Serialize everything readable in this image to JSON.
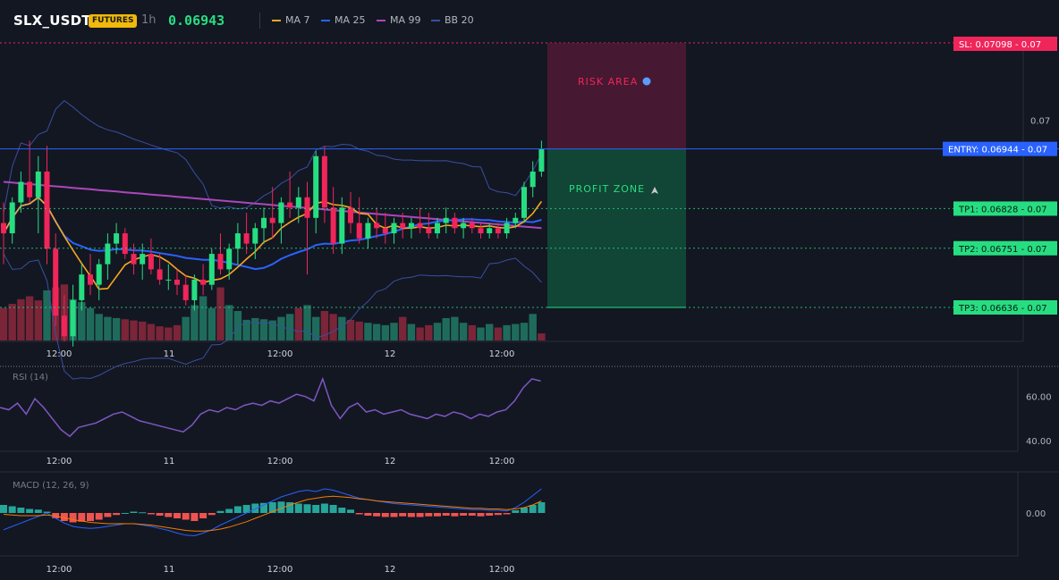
{
  "header": {
    "symbol": "SLX_USDT",
    "badge": "FUTURES",
    "interval": "1h",
    "price": "0.06943",
    "legend": [
      {
        "label": "MA 7",
        "color": "#f5a623"
      },
      {
        "label": "MA 25",
        "color": "#2962ff"
      },
      {
        "label": "MA 99",
        "color": "#ab47bc"
      },
      {
        "label": "BB 20",
        "color": "#3a4fa0"
      }
    ]
  },
  "colors": {
    "up": "#26de81",
    "down": "#f0255a",
    "volUp": "#1f6b5b",
    "volDown": "#7a2538",
    "ma7": "#f5a623",
    "ma25": "#2962ff",
    "ma99": "#ab47bc",
    "bb": "#3a4fa0",
    "rsi": "#7e57c2",
    "macd": "#2962ff",
    "signal": "#f57c00",
    "histUp": "#26a69a",
    "histDown": "#ef5350"
  },
  "chart_data": [
    {
      "type": "candlestick",
      "name": "price",
      "ylim": [
        0.0657,
        0.0715
      ],
      "y_ticks": [
        {
          "value": 0.07,
          "label": "0.07"
        }
      ],
      "x_ticks": [
        "12:00",
        "11",
        "12:00",
        "12",
        "12:00"
      ],
      "levels": [
        {
          "label": "SL: 0.07098 - 0.07",
          "value": 0.07098,
          "color": "#f0255a"
        },
        {
          "label": "ENTRY: 0.06944 - 0.07",
          "value": 0.06944,
          "color": "#2962ff"
        },
        {
          "label": "TP1: 0.06828 - 0.07",
          "value": 0.06828,
          "color": "#26de81"
        },
        {
          "label": "TP2: 0.06751 - 0.07",
          "value": 0.06751,
          "color": "#26de81"
        },
        {
          "label": "TP3: 0.06636 - 0.07",
          "value": 0.06636,
          "color": "#26de81"
        }
      ],
      "zones": {
        "risk_label": "RISK AREA",
        "profit_label": "PROFIT ZONE"
      },
      "candles": [
        [
          0.068,
          0.0684,
          0.0672,
          0.0678
        ],
        [
          0.0678,
          0.0685,
          0.0676,
          0.0684
        ],
        [
          0.0684,
          0.069,
          0.0682,
          0.0688
        ],
        [
          0.0688,
          0.0696,
          0.0684,
          0.0685
        ],
        [
          0.0685,
          0.0693,
          0.0678,
          0.069
        ],
        [
          0.069,
          0.0695,
          0.0672,
          0.0675
        ],
        [
          0.0675,
          0.0678,
          0.066,
          0.0662
        ],
        [
          0.0662,
          0.0666,
          0.0657,
          0.0658
        ],
        [
          0.0658,
          0.0668,
          0.0656,
          0.0665
        ],
        [
          0.0665,
          0.0672,
          0.0663,
          0.067
        ],
        [
          0.067,
          0.0674,
          0.0666,
          0.0668
        ],
        [
          0.0668,
          0.0673,
          0.0665,
          0.0672
        ],
        [
          0.0672,
          0.0678,
          0.0669,
          0.0676
        ],
        [
          0.0676,
          0.068,
          0.0674,
          0.0678
        ],
        [
          0.0678,
          0.0679,
          0.0673,
          0.0674
        ],
        [
          0.0674,
          0.0676,
          0.067,
          0.0672
        ],
        [
          0.0672,
          0.0676,
          0.0669,
          0.0674
        ],
        [
          0.0674,
          0.0677,
          0.067,
          0.0671
        ],
        [
          0.0671,
          0.0674,
          0.0668,
          0.0669
        ],
        [
          0.0669,
          0.0672,
          0.0667,
          0.0669
        ],
        [
          0.0669,
          0.0671,
          0.0666,
          0.0668
        ],
        [
          0.0668,
          0.067,
          0.0664,
          0.0665
        ],
        [
          0.0665,
          0.067,
          0.0663,
          0.0669
        ],
        [
          0.0669,
          0.0672,
          0.0666,
          0.0668
        ],
        [
          0.0668,
          0.0675,
          0.0667,
          0.0674
        ],
        [
          0.0674,
          0.0678,
          0.067,
          0.0671
        ],
        [
          0.0671,
          0.0676,
          0.0669,
          0.0675
        ],
        [
          0.0675,
          0.068,
          0.0672,
          0.0678
        ],
        [
          0.0678,
          0.0682,
          0.0674,
          0.0676
        ],
        [
          0.0676,
          0.068,
          0.0673,
          0.0679
        ],
        [
          0.0679,
          0.0683,
          0.0676,
          0.0681
        ],
        [
          0.0681,
          0.0687,
          0.0677,
          0.068
        ],
        [
          0.068,
          0.0685,
          0.0676,
          0.0684
        ],
        [
          0.0684,
          0.069,
          0.0681,
          0.0683
        ],
        [
          0.0683,
          0.0687,
          0.068,
          0.0685
        ],
        [
          0.0685,
          0.0688,
          0.067,
          0.0681
        ],
        [
          0.0681,
          0.0694,
          0.0678,
          0.0693
        ],
        [
          0.0693,
          0.0695,
          0.068,
          0.0683
        ],
        [
          0.0683,
          0.0687,
          0.0674,
          0.0676
        ],
        [
          0.0676,
          0.0685,
          0.0674,
          0.0683
        ],
        [
          0.0683,
          0.0686,
          0.0678,
          0.068
        ],
        [
          0.068,
          0.0685,
          0.0676,
          0.0677
        ],
        [
          0.0677,
          0.0681,
          0.0675,
          0.068
        ],
        [
          0.068,
          0.0683,
          0.0677,
          0.0679
        ],
        [
          0.0679,
          0.0682,
          0.0676,
          0.0678
        ],
        [
          0.0678,
          0.0681,
          0.0676,
          0.068
        ],
        [
          0.068,
          0.0682,
          0.0677,
          0.0679
        ],
        [
          0.0679,
          0.0681,
          0.0677,
          0.068
        ],
        [
          0.068,
          0.0683,
          0.0678,
          0.0679
        ],
        [
          0.0679,
          0.0682,
          0.0677,
          0.0678
        ],
        [
          0.0678,
          0.0681,
          0.0677,
          0.068
        ],
        [
          0.068,
          0.0683,
          0.0678,
          0.0681
        ],
        [
          0.0681,
          0.0682,
          0.0678,
          0.0679
        ],
        [
          0.0679,
          0.0681,
          0.0677,
          0.068
        ],
        [
          0.068,
          0.0681,
          0.0678,
          0.0679
        ],
        [
          0.0679,
          0.068,
          0.0677,
          0.0678
        ],
        [
          0.0678,
          0.068,
          0.0677,
          0.0679
        ],
        [
          0.0679,
          0.068,
          0.0677,
          0.0678
        ],
        [
          0.0678,
          0.0681,
          0.0677,
          0.068
        ],
        [
          0.068,
          0.0682,
          0.0679,
          0.0681
        ],
        [
          0.0681,
          0.0688,
          0.068,
          0.0687
        ],
        [
          0.0687,
          0.0692,
          0.0685,
          0.069
        ],
        [
          0.069,
          0.0696,
          0.0689,
          0.06944
        ]
      ],
      "volume": [
        [
          0.55,
          "down"
        ],
        [
          0.62,
          "down"
        ],
        [
          0.7,
          "down"
        ],
        [
          0.75,
          "down"
        ],
        [
          0.68,
          "down"
        ],
        [
          0.85,
          "up"
        ],
        [
          0.9,
          "down"
        ],
        [
          0.95,
          "down"
        ],
        [
          0.7,
          "up"
        ],
        [
          0.65,
          "up"
        ],
        [
          0.55,
          "up"
        ],
        [
          0.45,
          "up"
        ],
        [
          0.4,
          "up"
        ],
        [
          0.38,
          "up"
        ],
        [
          0.36,
          "down"
        ],
        [
          0.34,
          "down"
        ],
        [
          0.32,
          "down"
        ],
        [
          0.28,
          "down"
        ],
        [
          0.24,
          "down"
        ],
        [
          0.22,
          "down"
        ],
        [
          0.26,
          "down"
        ],
        [
          0.4,
          "up"
        ],
        [
          0.6,
          "up"
        ],
        [
          0.75,
          "up"
        ],
        [
          0.55,
          "up"
        ],
        [
          0.9,
          "down"
        ],
        [
          0.6,
          "up"
        ],
        [
          0.5,
          "up"
        ],
        [
          0.35,
          "up"
        ],
        [
          0.38,
          "up"
        ],
        [
          0.36,
          "up"
        ],
        [
          0.34,
          "up"
        ],
        [
          0.4,
          "up"
        ],
        [
          0.45,
          "up"
        ],
        [
          0.55,
          "down"
        ],
        [
          0.6,
          "up"
        ],
        [
          0.4,
          "up"
        ],
        [
          0.5,
          "down"
        ],
        [
          0.45,
          "down"
        ],
        [
          0.4,
          "up"
        ],
        [
          0.35,
          "down"
        ],
        [
          0.32,
          "down"
        ],
        [
          0.3,
          "up"
        ],
        [
          0.28,
          "up"
        ],
        [
          0.26,
          "up"
        ],
        [
          0.3,
          "up"
        ],
        [
          0.4,
          "down"
        ],
        [
          0.28,
          "up"
        ],
        [
          0.22,
          "down"
        ],
        [
          0.26,
          "down"
        ],
        [
          0.3,
          "up"
        ],
        [
          0.38,
          "up"
        ],
        [
          0.4,
          "up"
        ],
        [
          0.3,
          "up"
        ],
        [
          0.26,
          "down"
        ],
        [
          0.22,
          "up"
        ],
        [
          0.28,
          "up"
        ],
        [
          0.22,
          "down"
        ],
        [
          0.26,
          "up"
        ],
        [
          0.28,
          "up"
        ],
        [
          0.3,
          "up"
        ],
        [
          0.45,
          "up"
        ],
        [
          0.12,
          "down"
        ]
      ]
    },
    {
      "type": "line",
      "name": "RSI (14)",
      "ylim": [
        36,
        72
      ],
      "y_ticks": [
        {
          "value": 60,
          "label": "60.00"
        },
        {
          "value": 40,
          "label": "40.00"
        }
      ],
      "x_ticks": [
        "12:00",
        "11",
        "12:00",
        "12",
        "12:00"
      ],
      "values": [
        55,
        54,
        57,
        52,
        59,
        55,
        50,
        45,
        42,
        46,
        47,
        48,
        50,
        52,
        53,
        51,
        49,
        48,
        47,
        46,
        45,
        44,
        47,
        52,
        54,
        53,
        55,
        54,
        56,
        57,
        56,
        58,
        57,
        59,
        61,
        60,
        58,
        68,
        56,
        50,
        55,
        57,
        53,
        54,
        52,
        53,
        54,
        52,
        51,
        50,
        52,
        51,
        53,
        52,
        50,
        52,
        51,
        53,
        54,
        58,
        64,
        68,
        67
      ]
    },
    {
      "type": "histogram+line",
      "name": "MACD (12, 26, 9)",
      "ylim": [
        -0.0006,
        0.0006
      ],
      "y_ticks": [
        {
          "value": 0,
          "label": "0.00"
        }
      ],
      "x_ticks": [
        "12:00",
        "11",
        "12:00",
        "12",
        "12:00"
      ],
      "histogram": [
        0.00012,
        0.0001,
        8e-05,
        6e-05,
        5e-05,
        2e-05,
        -8e-05,
        -0.00012,
        -0.00014,
        -0.00013,
        -0.00012,
        -0.0001,
        -6e-05,
        -3e-05,
        0,
        2e-05,
        1e-05,
        -2e-05,
        -4e-05,
        -6e-05,
        -8e-05,
        -0.0001,
        -0.00012,
        -8e-05,
        -3e-05,
        3e-05,
        6e-05,
        0.0001,
        0.00012,
        0.00014,
        0.00015,
        0.00016,
        0.00017,
        0.00016,
        0.00014,
        0.00013,
        0.00012,
        0.00014,
        0.00012,
        8e-05,
        5e-05,
        -2e-05,
        -4e-05,
        -5e-05,
        -6e-05,
        -6e-05,
        -5e-05,
        -6e-05,
        -6e-05,
        -5e-05,
        -5e-05,
        -4e-05,
        -5e-05,
        -4e-05,
        -4e-05,
        -5e-05,
        -4e-05,
        -3e-05,
        -2e-05,
        4e-05,
        8e-05,
        0.00012,
        0.00016
      ],
      "macd": [
        -0.00025,
        -0.0002,
        -0.00015,
        -0.0001,
        -5e-05,
        0,
        -8e-05,
        -0.00015,
        -0.0002,
        -0.00022,
        -0.00023,
        -0.00022,
        -0.0002,
        -0.00018,
        -0.00016,
        -0.00016,
        -0.00018,
        -0.0002,
        -0.00023,
        -0.00026,
        -0.0003,
        -0.00033,
        -0.00034,
        -0.0003,
        -0.00025,
        -0.00018,
        -0.00012,
        -6e-05,
        0,
        6e-05,
        0.00012,
        0.00018,
        0.00024,
        0.00028,
        0.00032,
        0.00034,
        0.00032,
        0.00036,
        0.00034,
        0.0003,
        0.00026,
        0.00022,
        0.0002,
        0.00018,
        0.00016,
        0.00014,
        0.00013,
        0.00012,
        0.00011,
        0.0001,
        9e-05,
        8e-05,
        7e-05,
        6e-05,
        5e-05,
        5e-05,
        4e-05,
        4e-05,
        3e-05,
        8e-05,
        0.00016,
        0.00026,
        0.00036
      ],
      "signal": [
        -2e-05,
        -3e-05,
        -4e-05,
        -4e-05,
        -4e-05,
        -3e-05,
        -5e-05,
        -7e-05,
        -0.0001,
        -0.00012,
        -0.00014,
        -0.00015,
        -0.00016,
        -0.00016,
        -0.00016,
        -0.00016,
        -0.00017,
        -0.00018,
        -0.0002,
        -0.00022,
        -0.00024,
        -0.00026,
        -0.00027,
        -0.00027,
        -0.00026,
        -0.00024,
        -0.00021,
        -0.00017,
        -0.00013,
        -8e-05,
        -3e-05,
        2e-05,
        7e-05,
        0.00012,
        0.00016,
        0.0002,
        0.00022,
        0.00024,
        0.00025,
        0.00024,
        0.00023,
        0.00021,
        0.0002,
        0.00018,
        0.00017,
        0.00016,
        0.00015,
        0.00014,
        0.00013,
        0.00012,
        0.00011,
        0.0001,
        9e-05,
        8e-05,
        7e-05,
        7e-05,
        6e-05,
        6e-05,
        5e-05,
        6e-05,
        8e-05,
        0.00012,
        0.00018
      ]
    }
  ]
}
